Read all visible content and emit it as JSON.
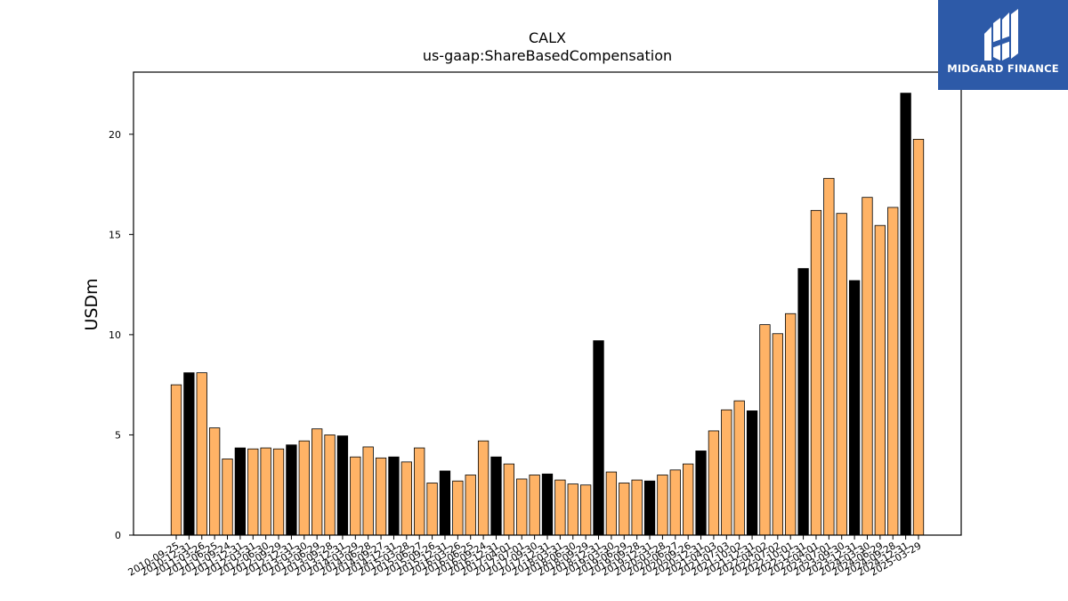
{
  "brand": {
    "name": "MIDGARD FINANCE",
    "logo_icon": "midgard-logo-icon",
    "background": "#2d5aa8"
  },
  "chart_data": {
    "type": "bar",
    "title": "CALX",
    "subtitle": "us-gaap:ShareBasedCompensation",
    "xlabel": "",
    "ylabel": "USDm",
    "ylim": [
      0,
      23.1
    ],
    "yticks": [
      0,
      5,
      10,
      15,
      20
    ],
    "grid": false,
    "colors": {
      "regular": "#ffb366",
      "annual": "#000000"
    },
    "categories": [
      "2010-09-25",
      "2010-12-31",
      "2011-03-26",
      "2011-06-25",
      "2011-09-24",
      "2011-12-31",
      "2012-03-31",
      "2012-06-30",
      "2012-09-29",
      "2012-12-31",
      "2013-03-30",
      "2013-06-29",
      "2013-09-28",
      "2013-12-31",
      "2014-03-29",
      "2014-06-28",
      "2014-09-27",
      "2014-12-31",
      "2015-03-28",
      "2015-06-27",
      "2015-09-26",
      "2015-12-31",
      "2016-03-26",
      "2016-06-25",
      "2016-09-24",
      "2016-12-31",
      "2017-04-01",
      "2017-07-01",
      "2017-09-30",
      "2017-12-31",
      "2018-03-31",
      "2018-06-30",
      "2018-09-29",
      "2018-12-31",
      "2019-03-30",
      "2019-06-29",
      "2019-09-28",
      "2019-12-31",
      "2020-03-28",
      "2020-06-27",
      "2020-09-26",
      "2020-12-31",
      "2021-04-03",
      "2021-07-03",
      "2021-10-02",
      "2021-12-31",
      "2022-04-02",
      "2022-07-02",
      "2022-10-01",
      "2022-12-31",
      "2023-04-01",
      "2023-07-01",
      "2023-09-30",
      "2023-12-31",
      "2024-03-30",
      "2024-06-29",
      "2024-09-28",
      "2024-12-31",
      "2025-03-29"
    ],
    "values": [
      7.5,
      8.1,
      8.1,
      5.35,
      3.8,
      4.35,
      4.3,
      4.35,
      4.3,
      4.5,
      4.7,
      5.3,
      5.0,
      4.95,
      3.9,
      4.4,
      3.85,
      3.9,
      3.65,
      4.35,
      2.6,
      3.2,
      2.7,
      3.0,
      4.7,
      3.9,
      3.55,
      2.8,
      3.0,
      3.05,
      2.75,
      2.55,
      2.5,
      9.7,
      3.15,
      2.6,
      2.75,
      2.7,
      3.0,
      3.25,
      3.55,
      4.2,
      5.2,
      6.25,
      6.7,
      6.2,
      10.5,
      10.05,
      11.05,
      13.3,
      16.2,
      17.8,
      16.05,
      12.7,
      16.85,
      15.45,
      16.35,
      22.05,
      19.75
    ],
    "annual": [
      false,
      true,
      false,
      false,
      false,
      true,
      false,
      false,
      false,
      true,
      false,
      false,
      false,
      true,
      false,
      false,
      false,
      true,
      false,
      false,
      false,
      true,
      false,
      false,
      false,
      true,
      false,
      false,
      false,
      true,
      false,
      false,
      false,
      true,
      false,
      false,
      false,
      true,
      false,
      false,
      false,
      true,
      false,
      false,
      false,
      true,
      false,
      false,
      false,
      true,
      false,
      false,
      false,
      true,
      false,
      false,
      false,
      true,
      false
    ]
  }
}
